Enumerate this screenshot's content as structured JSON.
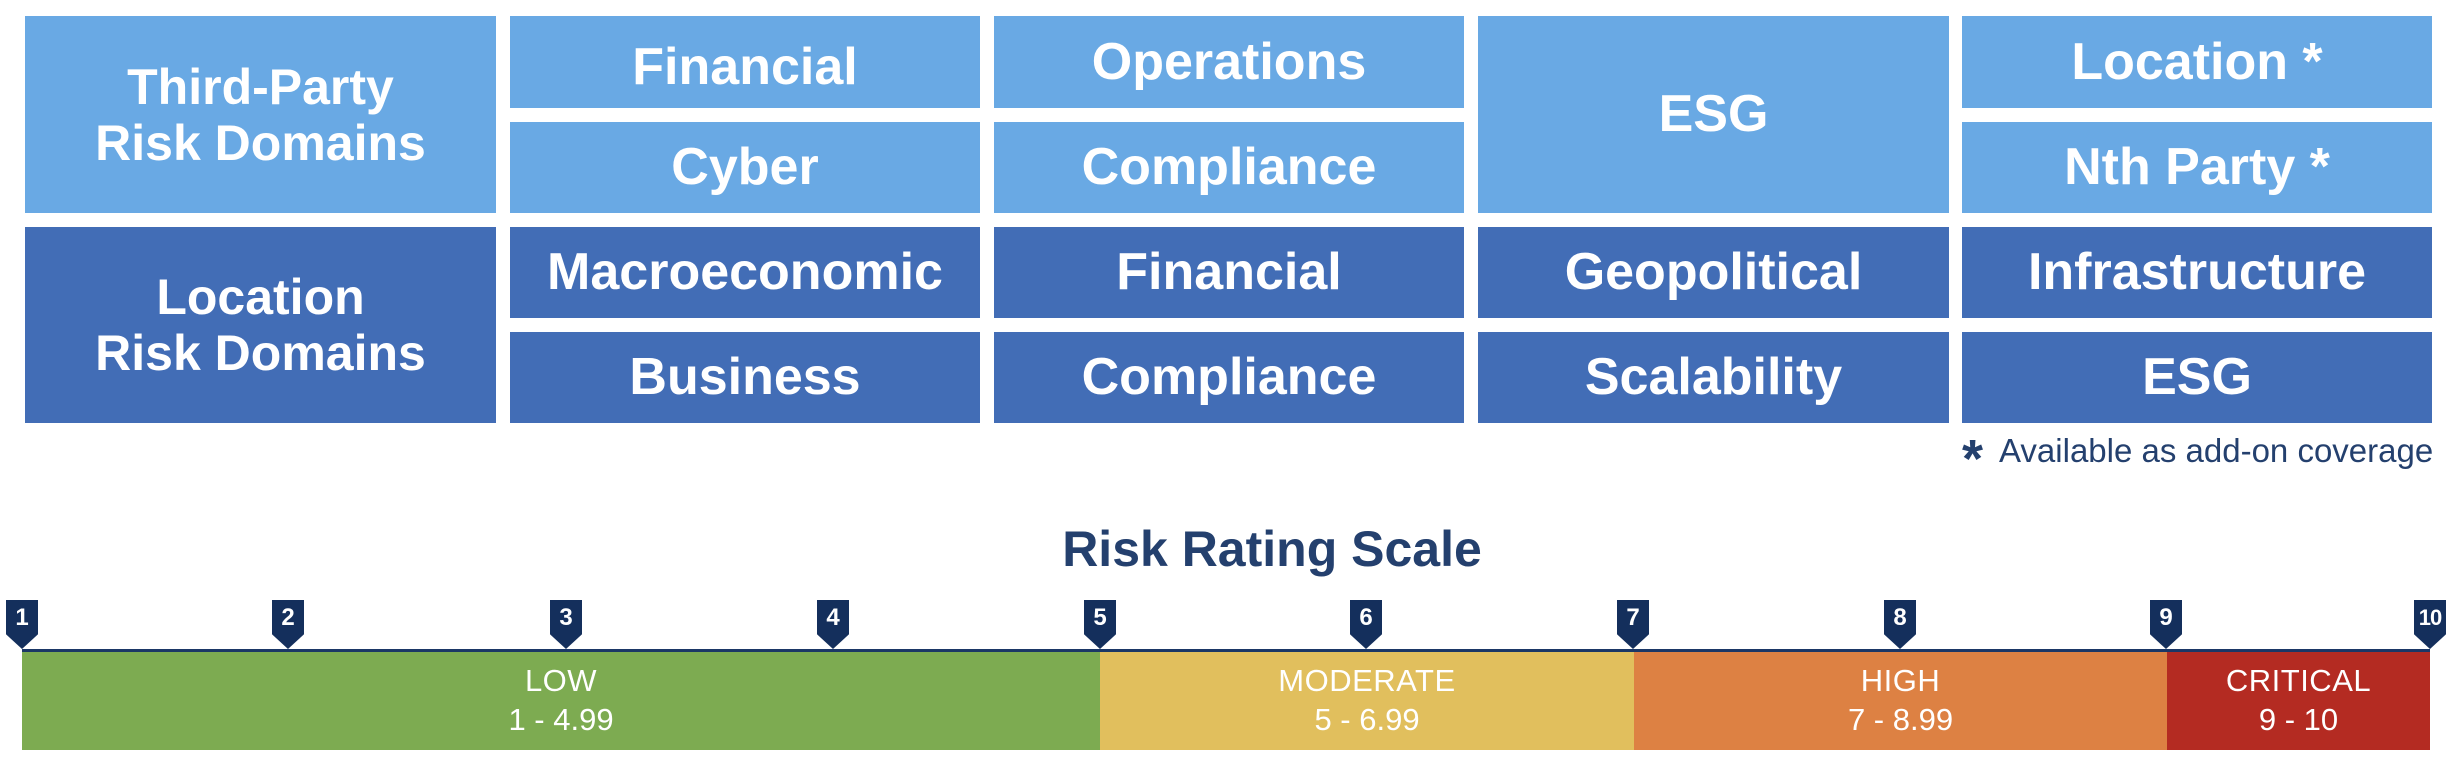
{
  "third_party": {
    "header": "Third-Party\nRisk Domains",
    "cells": [
      "Financial",
      "Operations",
      "ESG",
      "Location  *",
      "Cyber",
      "Compliance",
      "Nth Party *"
    ]
  },
  "location": {
    "header": "Location\nRisk Domains",
    "cells": [
      "Macroeconomic",
      "Financial",
      "Geopolitical",
      "Infrastructure",
      "Business",
      "Compliance",
      "Scalability",
      "ESG"
    ]
  },
  "footnote": {
    "star": "*",
    "text": "Available as add-on coverage"
  },
  "scale": {
    "title": "Risk Rating Scale",
    "markers": [
      "1",
      "2",
      "3",
      "4",
      "5",
      "6",
      "7",
      "8",
      "9",
      "10"
    ],
    "bands": [
      {
        "name": "LOW",
        "range": "1 - 4.99",
        "color": "#7dab51"
      },
      {
        "name": "MODERATE",
        "range": "5 - 6.99",
        "color": "#e1bf5d"
      },
      {
        "name": "HIGH",
        "range": "7 - 8.99",
        "color": "#dd8143"
      },
      {
        "name": "CRITICAL",
        "range": "9 - 10",
        "color": "#b42b22"
      }
    ]
  },
  "colors": {
    "third_party_fill": "#69a9e4",
    "location_fill": "#426db6",
    "text_dark": "#24406e"
  }
}
